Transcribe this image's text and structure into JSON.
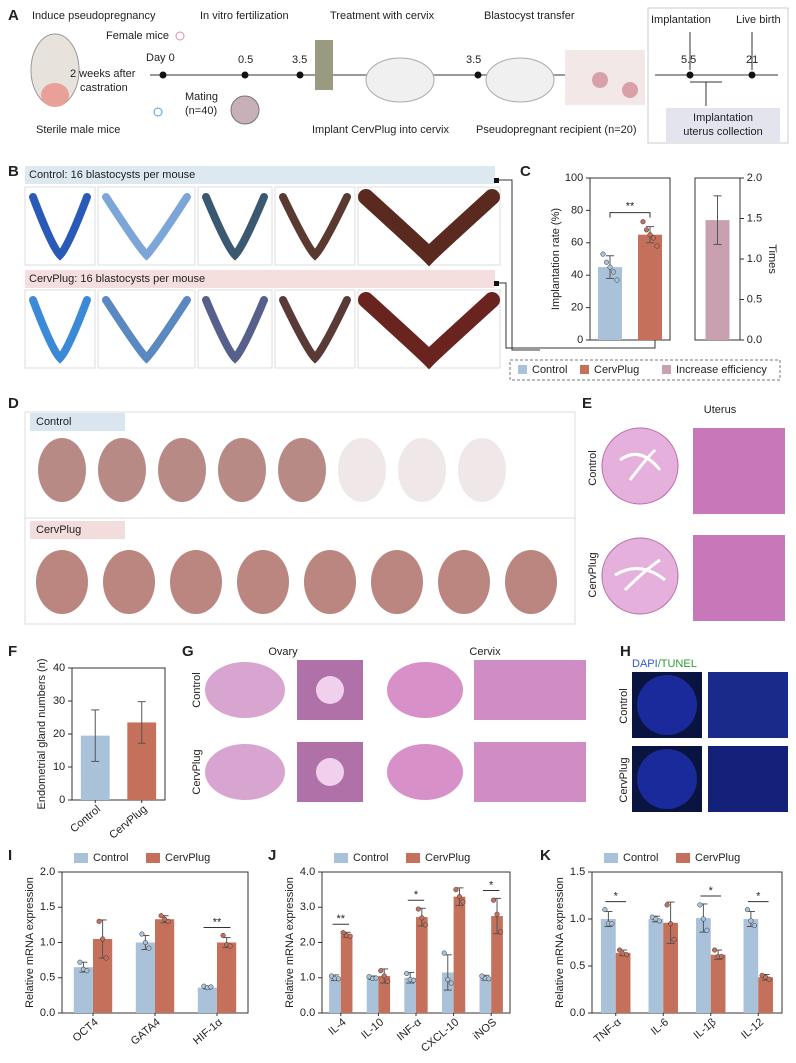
{
  "figure": {
    "A": {
      "label": "A",
      "induce": "Induce pseudopregnancy",
      "female": "Female mice",
      "day0": "Day 0",
      "castration": [
        "2 weeks after",
        "castration"
      ],
      "sterile": "Sterile male mice",
      "ivf": "In vitro fertilization",
      "mating": [
        "Mating",
        "(n=40)"
      ],
      "t05": "0.5",
      "t35a": "3.5",
      "treatment": "Treatment with cervix",
      "implant": "Implant CervPlug into cervix",
      "transfer": "Blastocyst transfer",
      "t35b": "3.5",
      "recipient": "Pseudopregnant recipient (n=20)",
      "implantation": "Implantation",
      "birth": "Live birth",
      "t55": "5.5",
      "t21": "21",
      "collection": [
        "Implantation",
        "uterus collection"
      ]
    },
    "B": {
      "label": "B",
      "control": "Control: 16 blastocysts per mouse",
      "cervplug": "CervPlug: 16 blastocysts per mouse"
    },
    "D": {
      "label": "D",
      "control": "Control",
      "cervplug": "CervPlug"
    },
    "E": {
      "label": "E",
      "title": "Uterus",
      "control": "Control",
      "cervplug": "CervPlug"
    },
    "G": {
      "label": "G",
      "ovary": "Ovary",
      "cervix": "Cervix",
      "control": "Control",
      "cervplug": "CervPlug"
    },
    "H": {
      "label": "H",
      "stain": [
        "DAPI",
        "/TUNEL"
      ],
      "control": "Control",
      "cervplug": "CervPlug"
    }
  },
  "chart_data": [
    {
      "label": "C",
      "type": "bar",
      "ylabel": "Implantation rate (%)",
      "y2label": "Times",
      "ylim": [
        0,
        100
      ],
      "yticks": [
        0,
        20,
        40,
        60,
        80,
        100
      ],
      "y2lim": [
        0,
        2
      ],
      "y2ticks": [
        {
          "value": 0,
          "label": "0.0"
        },
        {
          "value": 0.5,
          "label": "0.5"
        },
        {
          "value": 1,
          "label": "1.0"
        },
        {
          "value": 1.5,
          "label": "1.5"
        },
        {
          "value": 2,
          "label": "2.0"
        }
      ],
      "significance": "**",
      "series": [
        {
          "name": "Control",
          "color": "#a9c1d9",
          "values": [
            45
          ],
          "errors": [
            7
          ],
          "points": [
            [
              53,
              48,
              45,
              42,
              37
            ]
          ]
        },
        {
          "name": "CervPlug",
          "color": "#c4705a",
          "values": [
            65
          ],
          "errors": [
            5
          ],
          "points": [
            [
              73,
              68,
              65,
              63,
              58
            ]
          ]
        },
        {
          "name": "Increase efficiency",
          "color": "#c9a0b0",
          "values": [
            1.48
          ],
          "errors": [
            0.3
          ],
          "axis": "y2"
        }
      ]
    },
    {
      "label": "F",
      "type": "bar",
      "ylabel": "Endometrial gland numbers (n)",
      "categories": [
        "Control",
        "CervPlug"
      ],
      "values": [
        19.5,
        23.5
      ],
      "errors": [
        7.8,
        6.3
      ],
      "colors": [
        "#a9c1d9",
        "#c4705a"
      ],
      "ylim": [
        0,
        40
      ],
      "yticks": [
        0,
        10,
        20,
        30,
        40
      ]
    },
    {
      "label": "I",
      "type": "bar",
      "ylabel": "Relative mRNA expression",
      "categories": [
        "OCT4",
        "GATA4",
        "HIF-1α"
      ],
      "ylim": [
        0,
        2
      ],
      "yticks": [
        {
          "value": 0,
          "label": "0.0"
        },
        {
          "value": 0.5,
          "label": "0.5"
        },
        {
          "value": 1,
          "label": "1.0"
        },
        {
          "value": 1.5,
          "label": "1.5"
        },
        {
          "value": 2,
          "label": "2.0"
        }
      ],
      "significance": [
        null,
        null,
        "**"
      ],
      "series": [
        {
          "name": "Control",
          "color": "#a9c1d9",
          "values": [
            0.65,
            1.0,
            0.36
          ],
          "errors": [
            0.07,
            0.1,
            0.02
          ],
          "points": [
            [
              0.72,
              0.62,
              0.6
            ],
            [
              1.12,
              1.0,
              0.92
            ],
            [
              0.38,
              0.36,
              0.37
            ]
          ]
        },
        {
          "name": "CervPlug",
          "color": "#c4705a",
          "values": [
            1.05,
            1.33,
            1.0
          ],
          "errors": [
            0.27,
            0.05,
            0.07
          ],
          "points": [
            [
              1.3,
              1.05,
              0.78
            ],
            [
              1.38,
              1.33,
              1.3
            ],
            [
              1.1,
              0.97,
              0.95
            ]
          ]
        }
      ]
    },
    {
      "label": "J",
      "type": "bar",
      "ylabel": "Relative mRNA expression",
      "categories": [
        "IL-4",
        "IL-10",
        "INF-α",
        "CXCL-10",
        "iNOS"
      ],
      "ylim": [
        0,
        4
      ],
      "yticks": [
        {
          "value": 0,
          "label": "0.0"
        },
        {
          "value": 1,
          "label": "1.0"
        },
        {
          "value": 2,
          "label": "2.0"
        },
        {
          "value": 3,
          "label": "3.0"
        },
        {
          "value": 4,
          "label": "4.0"
        }
      ],
      "significance": [
        "**",
        null,
        "*",
        null,
        "*"
      ],
      "series": [
        {
          "name": "Control",
          "color": "#a9c1d9",
          "values": [
            1.0,
            1.0,
            1.0,
            1.15,
            1.0
          ],
          "errors": [
            0.08,
            0.05,
            0.15,
            0.5,
            0.07
          ],
          "points": [
            [
              1.05,
              0.98,
              0.97
            ],
            [
              1.03,
              0.98,
              0.99
            ],
            [
              1.12,
              0.95,
              0.93
            ],
            [
              1.7,
              0.95,
              0.85
            ],
            [
              1.05,
              0.98,
              0.97
            ]
          ]
        },
        {
          "name": "CervPlug",
          "color": "#c4705a",
          "values": [
            2.22,
            1.05,
            2.72,
            3.3,
            2.75
          ],
          "errors": [
            0.07,
            0.2,
            0.25,
            0.25,
            0.5
          ],
          "points": [
            [
              2.28,
              2.2,
              2.18
            ],
            [
              1.2,
              1.05,
              0.9
            ],
            [
              2.95,
              2.7,
              2.5
            ],
            [
              3.5,
              3.3,
              3.15
            ],
            [
              3.2,
              2.8,
              2.3
            ]
          ]
        }
      ]
    },
    {
      "label": "K",
      "type": "bar",
      "ylabel": "Relative mRNA expression",
      "categories": [
        "TNF-α",
        "IL-6",
        "IL-1β",
        "IL-12"
      ],
      "ylim": [
        0,
        1.5
      ],
      "yticks": [
        {
          "value": 0,
          "label": "0.0"
        },
        {
          "value": 0.5,
          "label": "0.5"
        },
        {
          "value": 1,
          "label": "1.0"
        },
        {
          "value": 1.5,
          "label": "1.5"
        }
      ],
      "significance": [
        "*",
        null,
        "*",
        "*"
      ],
      "series": [
        {
          "name": "Control",
          "color": "#a9c1d9",
          "values": [
            1.0,
            1.0,
            1.01,
            1.0
          ],
          "errors": [
            0.08,
            0.03,
            0.15,
            0.08
          ],
          "points": [
            [
              1.1,
              0.95,
              0.95
            ],
            [
              1.02,
              1.0,
              0.98
            ],
            [
              1.15,
              1.0,
              0.88
            ],
            [
              1.1,
              0.98,
              0.93
            ]
          ]
        },
        {
          "name": "CervPlug",
          "color": "#c4705a",
          "values": [
            0.64,
            0.96,
            0.62,
            0.38
          ],
          "errors": [
            0.03,
            0.22,
            0.05,
            0.03
          ],
          "points": [
            [
              0.67,
              0.63,
              0.62
            ],
            [
              1.15,
              0.95,
              0.78
            ],
            [
              0.67,
              0.6,
              0.6
            ],
            [
              0.4,
              0.38,
              0.36
            ]
          ]
        }
      ]
    }
  ]
}
